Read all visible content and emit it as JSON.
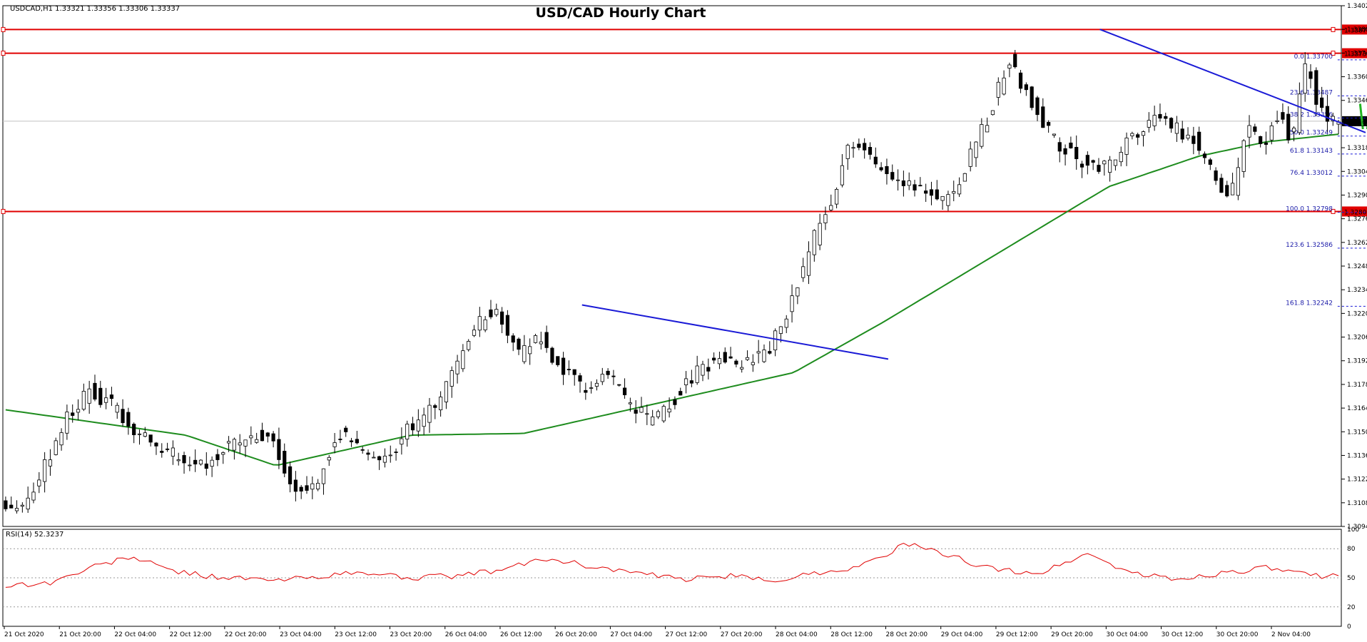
{
  "window": {
    "info_line": "USDCAD,H1  1.33321 1.33356 1.33306 1.33337"
  },
  "colors": {
    "bull_body": "#ffffff",
    "bear_body": "#000000",
    "candle_outline": "#000000",
    "ma_line": "#1e8c1e",
    "resistance_line": "#e00000",
    "trend_line": "#1a1ad6",
    "fib_line": "#1a1ad6",
    "arrow": "#22b422",
    "rsi_line": "#e00000",
    "price_tag_bg": "#e00000",
    "current_tag_bg": "#000000"
  },
  "chart_data": [
    {
      "type": "candlestick",
      "title": "USD/CAD Hourly Chart",
      "symbol": "USDCAD",
      "timeframe": "H1",
      "ylim": [
        1.3094,
        1.3402
      ],
      "y_ticks": [
        "1.34020",
        "1.33880",
        "1.33740",
        "1.33600",
        "1.33460",
        "1.33320",
        "1.33180",
        "1.33040",
        "1.32900",
        "1.32760",
        "1.32620",
        "1.32480",
        "1.32340",
        "1.32200",
        "1.32060",
        "1.31920",
        "1.31780",
        "1.31640",
        "1.31500",
        "1.31360",
        "1.31220",
        "1.31080",
        "1.30940"
      ],
      "x_ticks": [
        "21 Oct 2020",
        "21 Oct 20:00",
        "22 Oct 04:00",
        "22 Oct 12:00",
        "22 Oct 20:00",
        "23 Oct 04:00",
        "23 Oct 12:00",
        "23 Oct 20:00",
        "26 Oct 04:00",
        "26 Oct 12:00",
        "26 Oct 20:00",
        "27 Oct 04:00",
        "27 Oct 12:00",
        "27 Oct 20:00",
        "28 Oct 04:00",
        "28 Oct 12:00",
        "28 Oct 20:00",
        "29 Oct 04:00",
        "29 Oct 12:00",
        "29 Oct 20:00",
        "30 Oct 04:00",
        "30 Oct 12:00",
        "30 Oct 20:00",
        "2 Nov 04:00"
      ],
      "candle_count": 240,
      "price_path": [
        [
          0,
          1.311
        ],
        [
          5,
          1.3105
        ],
        [
          10,
          1.313
        ],
        [
          15,
          1.316
        ],
        [
          20,
          1.3175
        ],
        [
          25,
          1.3165
        ],
        [
          30,
          1.315
        ],
        [
          35,
          1.314
        ],
        [
          40,
          1.3135
        ],
        [
          45,
          1.313
        ],
        [
          50,
          1.314
        ],
        [
          55,
          1.3145
        ],
        [
          60,
          1.315
        ],
        [
          65,
          1.3115
        ],
        [
          70,
          1.312
        ],
        [
          75,
          1.315
        ],
        [
          80,
          1.314
        ],
        [
          85,
          1.313
        ],
        [
          90,
          1.315
        ],
        [
          95,
          1.316
        ],
        [
          100,
          1.318
        ],
        [
          105,
          1.321
        ],
        [
          110,
          1.3225
        ],
        [
          115,
          1.3195
        ],
        [
          120,
          1.3205
        ],
        [
          125,
          1.3185
        ],
        [
          130,
          1.3175
        ],
        [
          135,
          1.3185
        ],
        [
          140,
          1.3165
        ],
        [
          145,
          1.3155
        ],
        [
          150,
          1.317
        ],
        [
          155,
          1.3185
        ],
        [
          160,
          1.3195
        ],
        [
          165,
          1.319
        ],
        [
          170,
          1.3195
        ],
        [
          175,
          1.322
        ],
        [
          180,
          1.326
        ],
        [
          185,
          1.329
        ],
        [
          188,
          1.332
        ],
        [
          192,
          1.3315
        ],
        [
          196,
          1.3305
        ],
        [
          200,
          1.33
        ],
        [
          205,
          1.3295
        ],
        [
          210,
          1.3285
        ],
        [
          215,
          1.331
        ],
        [
          220,
          1.334
        ],
        [
          224,
          1.337
        ],
        [
          226,
          1.336
        ],
        [
          230,
          1.334
        ],
        [
          235,
          1.332
        ],
        [
          240,
          1.331
        ],
        [
          245,
          1.3305
        ],
        [
          250,
          1.332
        ],
        [
          255,
          1.3335
        ],
        [
          260,
          1.333
        ],
        [
          265,
          1.3325
        ],
        [
          270,
          1.33
        ],
        [
          273,
          1.3285
        ],
        [
          277,
          1.333
        ],
        [
          281,
          1.332
        ],
        [
          284,
          1.334
        ],
        [
          287,
          1.332
        ],
        [
          290,
          1.337
        ],
        [
          293,
          1.334
        ],
        [
          296,
          1.33337
        ]
      ],
      "ma_path": [
        [
          0,
          1.3163
        ],
        [
          40,
          1.3148
        ],
        [
          60,
          1.313
        ],
        [
          90,
          1.3148
        ],
        [
          115,
          1.3149
        ],
        [
          150,
          1.317
        ],
        [
          175,
          1.3185
        ],
        [
          195,
          1.3215
        ],
        [
          220,
          1.3255
        ],
        [
          245,
          1.3295
        ],
        [
          265,
          1.3313
        ],
        [
          280,
          1.33215
        ],
        [
          296,
          1.3326
        ]
      ],
      "current_price": "1.33337",
      "horizontal_levels": [
        {
          "price": 1.33879,
          "label": "1.33879"
        },
        {
          "price": 1.33739,
          "label": "1.33739"
        },
        {
          "price": 1.32803,
          "label": "1.32803"
        }
      ],
      "fib_start_index": 273,
      "fib_levels": [
        {
          "label": "0.0  1.33700",
          "price": 1.337
        },
        {
          "label": "23.6  1.33487",
          "price": 1.33487
        },
        {
          "label": "38.2  1.33356",
          "price": 1.33356
        },
        {
          "label": "50.0  1.33249",
          "price": 1.33249
        },
        {
          "label": "61.8  1.33143",
          "price": 1.33143
        },
        {
          "label": "76.4  1.33012",
          "price": 1.33012
        },
        {
          "label": "100.0  1.32798",
          "price": 1.32798
        },
        {
          "label": "123.6  1.32586",
          "price": 1.32586
        },
        {
          "label": "161.8  1.32242",
          "price": 1.32242
        }
      ],
      "trend_lines": [
        {
          "name": "trend-line-1",
          "start": [
            128,
            1.3225
          ],
          "end": [
            196,
            1.3193
          ]
        },
        {
          "name": "trend-line-2",
          "start": [
            243,
            1.3388
          ],
          "end": [
            302,
            1.3327
          ]
        }
      ]
    },
    {
      "type": "line",
      "title": "RSI(14) 52.3237",
      "ylim": [
        0,
        100
      ],
      "y_ticks": [
        100,
        80,
        50,
        20,
        0
      ],
      "levels": [
        80,
        50,
        20
      ],
      "path": [
        [
          0,
          42
        ],
        [
          10,
          45
        ],
        [
          20,
          62
        ],
        [
          28,
          72
        ],
        [
          35,
          60
        ],
        [
          40,
          55
        ],
        [
          45,
          52
        ],
        [
          50,
          50
        ],
        [
          60,
          47
        ],
        [
          70,
          52
        ],
        [
          80,
          55
        ],
        [
          90,
          50
        ],
        [
          100,
          52
        ],
        [
          110,
          58
        ],
        [
          120,
          70
        ],
        [
          130,
          62
        ],
        [
          140,
          55
        ],
        [
          150,
          48
        ],
        [
          160,
          52
        ],
        [
          170,
          47
        ],
        [
          180,
          55
        ],
        [
          190,
          62
        ],
        [
          200,
          85
        ],
        [
          210,
          72
        ],
        [
          220,
          58
        ],
        [
          230,
          55
        ],
        [
          240,
          75
        ],
        [
          250,
          55
        ],
        [
          260,
          48
        ],
        [
          270,
          55
        ],
        [
          280,
          60
        ],
        [
          290,
          52
        ],
        [
          296,
          52.3
        ]
      ]
    }
  ]
}
